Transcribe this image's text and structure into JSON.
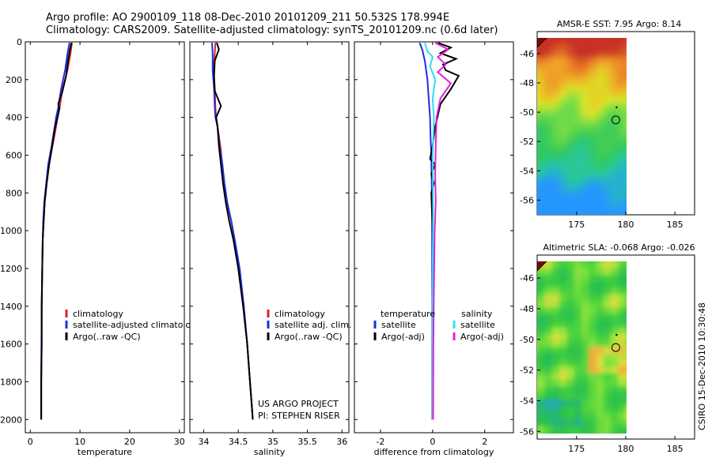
{
  "header": {
    "line1": "Argo profile: AO 2900109_118 08-Dec-2010 20101209_211 50.532S 178.994E",
    "line2": "Climatology: CARS2009. Satellite-adjusted climatology: synTS_20101209.nc (0.6d later)"
  },
  "footer": {
    "stamp": "CSIRO 15-Dec-2010 10:30:48"
  },
  "colors": {
    "climatology": "#e0202a",
    "satellite": "#1a2fe0",
    "argo": "#000000",
    "sat_cyan": "#2ee0ea",
    "argo_magenta": "#e020e0"
  },
  "chart_data": [
    {
      "type": "line",
      "id": "temperature",
      "xlabel": "temperature",
      "ylabel": "",
      "xlim": [
        -1,
        31
      ],
      "ylim": [
        2070,
        0
      ],
      "xticks": [
        "0",
        "10",
        "20",
        "30"
      ],
      "yticks": [
        "0",
        "200",
        "400",
        "600",
        "800",
        "1000",
        "1200",
        "1400",
        "1600",
        "1800",
        "2000"
      ],
      "legend": [
        "climatology",
        "satellite-adjusted climatology",
        "Argo(..raw -QC)"
      ],
      "series": [
        {
          "name": "climatology",
          "color": "climatology",
          "x": [
            8.4,
            8.1,
            7.5,
            6.5,
            5.9,
            5.5,
            5.2,
            4.5,
            3.8,
            3.3,
            2.9,
            2.7,
            2.5,
            2.4,
            2.3,
            2.3,
            2.2,
            2.2,
            2.2
          ],
          "y": [
            5,
            60,
            150,
            250,
            350,
            400,
            450,
            550,
            650,
            750,
            850,
            950,
            1050,
            1200,
            1400,
            1600,
            1800,
            1950,
            2000
          ]
        },
        {
          "name": "satellite-adjusted climatology",
          "color": "satellite",
          "x": [
            7.9,
            7.5,
            7.0,
            6.2,
            5.6,
            5.2,
            4.9,
            4.3,
            3.6,
            3.2,
            2.8,
            2.6,
            2.5,
            2.4,
            2.3,
            2.25,
            2.2,
            2.2,
            2.2
          ],
          "y": [
            5,
            60,
            150,
            250,
            350,
            400,
            450,
            550,
            650,
            750,
            850,
            950,
            1050,
            1200,
            1400,
            1600,
            1800,
            1950,
            2000
          ]
        },
        {
          "name": "Argo(..raw -QC)",
          "color": "argo",
          "x": [
            8.3,
            8.0,
            7.6,
            7.2,
            6.5,
            5.6,
            5.9,
            5.5,
            5.0,
            4.4,
            3.8,
            3.3,
            2.9,
            2.7,
            2.5,
            2.4,
            2.3,
            2.3,
            2.2,
            2.2,
            2.2
          ],
          "y": [
            5,
            40,
            100,
            180,
            260,
            330,
            350,
            400,
            450,
            550,
            650,
            750,
            850,
            950,
            1050,
            1200,
            1400,
            1600,
            1800,
            1950,
            2000
          ]
        }
      ]
    },
    {
      "type": "line",
      "id": "salinity",
      "xlabel": "salinity",
      "ylabel": "",
      "xlim": [
        33.8,
        36.1
      ],
      "ylim": [
        2070,
        0
      ],
      "xticks": [
        "34",
        "34.5",
        "35",
        "35.5",
        "36"
      ],
      "legend": [
        "climatology",
        "satellite adj. clim.",
        "Argo(..raw -QC)"
      ],
      "annotation": [
        "US ARGO PROJECT",
        "PI: STEPHEN RISER"
      ],
      "series": [
        {
          "name": "climatology",
          "color": "climatology",
          "x": [
            34.17,
            34.16,
            34.14,
            34.16,
            34.17,
            34.18,
            34.2,
            34.24,
            34.27,
            34.3,
            34.34,
            34.4,
            34.45,
            34.52,
            34.58,
            34.63,
            34.67,
            34.7,
            34.71
          ],
          "y": [
            5,
            60,
            150,
            250,
            350,
            400,
            450,
            550,
            650,
            750,
            850,
            950,
            1050,
            1200,
            1400,
            1600,
            1800,
            1950,
            2000
          ]
        },
        {
          "name": "satellite adj. clim.",
          "color": "satellite",
          "x": [
            34.12,
            34.13,
            34.13,
            34.15,
            34.16,
            34.17,
            34.2,
            34.23,
            34.27,
            34.3,
            34.34,
            34.4,
            34.45,
            34.52,
            34.58,
            34.63,
            34.67,
            34.7,
            34.71
          ],
          "y": [
            5,
            60,
            150,
            250,
            350,
            400,
            450,
            550,
            650,
            750,
            850,
            950,
            1050,
            1200,
            1400,
            1600,
            1800,
            1950,
            2000
          ]
        },
        {
          "name": "Argo(..raw -QC)",
          "color": "argo",
          "x": [
            34.19,
            34.22,
            34.16,
            34.15,
            34.16,
            34.25,
            34.18,
            34.2,
            34.22,
            34.25,
            34.28,
            34.32,
            34.37,
            34.43,
            34.5,
            34.57,
            34.63,
            34.67,
            34.7,
            34.71
          ],
          "y": [
            5,
            40,
            100,
            180,
            260,
            340,
            400,
            450,
            550,
            650,
            750,
            850,
            950,
            1050,
            1200,
            1400,
            1600,
            1800,
            1950,
            2000
          ]
        }
      ]
    },
    {
      "type": "line",
      "id": "difference",
      "xlabel": "difference from climatology",
      "ylabel": "",
      "xlim": [
        -3,
        3.1
      ],
      "ylim": [
        2070,
        0
      ],
      "xticks": [
        "-2",
        "0",
        "2"
      ],
      "legend_headers": [
        "temperature",
        "salinity"
      ],
      "legend": [
        "satellite",
        "Argo(-adj)",
        "satellite",
        "Argo(-adj)"
      ],
      "series": [
        {
          "name": "temperature satellite",
          "color": "satellite",
          "x": [
            -0.5,
            -0.4,
            -0.3,
            -0.2,
            -0.15,
            -0.1,
            -0.08,
            -0.05,
            -0.04,
            -0.03,
            -0.02,
            -0.02,
            -0.02,
            -0.01,
            -0.01,
            -0.01,
            -0.01,
            -0.01
          ],
          "y": [
            5,
            40,
            100,
            200,
            300,
            400,
            500,
            600,
            700,
            800,
            900,
            1000,
            1200,
            1400,
            1600,
            1800,
            1950,
            2000
          ]
        },
        {
          "name": "temperature Argo(-adj)",
          "color": "argo",
          "x": [
            0.2,
            0.7,
            0.3,
            0.9,
            0.4,
            0.5,
            1.0,
            0.7,
            0.3,
            0.1,
            0.0,
            -0.1,
            0.1,
            -0.05,
            0.05,
            -0.05,
            0.0,
            0.02,
            0.0,
            0.0,
            0.0
          ],
          "y": [
            5,
            30,
            60,
            90,
            120,
            150,
            180,
            250,
            330,
            450,
            550,
            620,
            650,
            700,
            750,
            800,
            1000,
            1200,
            1500,
            1800,
            2000
          ]
        },
        {
          "name": "salinity satellite",
          "color": "sat_cyan",
          "x": [
            -0.3,
            -0.2,
            0.0,
            -0.1,
            0.1,
            0.0,
            0.05,
            0.0,
            0.02,
            0.0,
            0.0,
            0.0
          ],
          "y": [
            5,
            50,
            80,
            130,
            200,
            300,
            400,
            600,
            900,
            1200,
            1600,
            2000
          ]
        },
        {
          "name": "salinity Argo(-adj)",
          "color": "argo_magenta",
          "x": [
            0.1,
            0.6,
            0.2,
            0.5,
            0.2,
            0.7,
            0.3,
            0.15,
            0.12,
            0.1,
            0.12,
            0.08,
            0.05,
            0.03,
            0.02
          ],
          "y": [
            5,
            40,
            80,
            120,
            160,
            220,
            300,
            400,
            550,
            700,
            850,
            1000,
            1300,
            1600,
            2000
          ]
        }
      ]
    },
    {
      "type": "heatmap",
      "id": "sst",
      "title": "AMSR-E SST: 7.95 Argo: 8.14",
      "xlim": [
        171,
        187
      ],
      "ylim": [
        -57,
        -44.5
      ],
      "xticks": [
        "175",
        "180",
        "185"
      ],
      "yticks": [
        "-46",
        "-48",
        "-50",
        "-52",
        "-54",
        "-56"
      ],
      "data_xlim": [
        171,
        180
      ],
      "float_position": {
        "lon": 178.99,
        "lat": -50.53
      }
    },
    {
      "type": "heatmap",
      "id": "sla",
      "title": "Altimetric SLA: -0.068 Argo: -0.026",
      "xlim": [
        171,
        187
      ],
      "ylim": [
        -56.5,
        -44.5
      ],
      "xticks": [
        "175",
        "180",
        "185"
      ],
      "yticks": [
        "-46",
        "-48",
        "-50",
        "-52",
        "-54",
        "-56"
      ],
      "data_xlim": [
        171,
        180
      ],
      "float_position": {
        "lon": 178.99,
        "lat": -50.53
      }
    }
  ]
}
